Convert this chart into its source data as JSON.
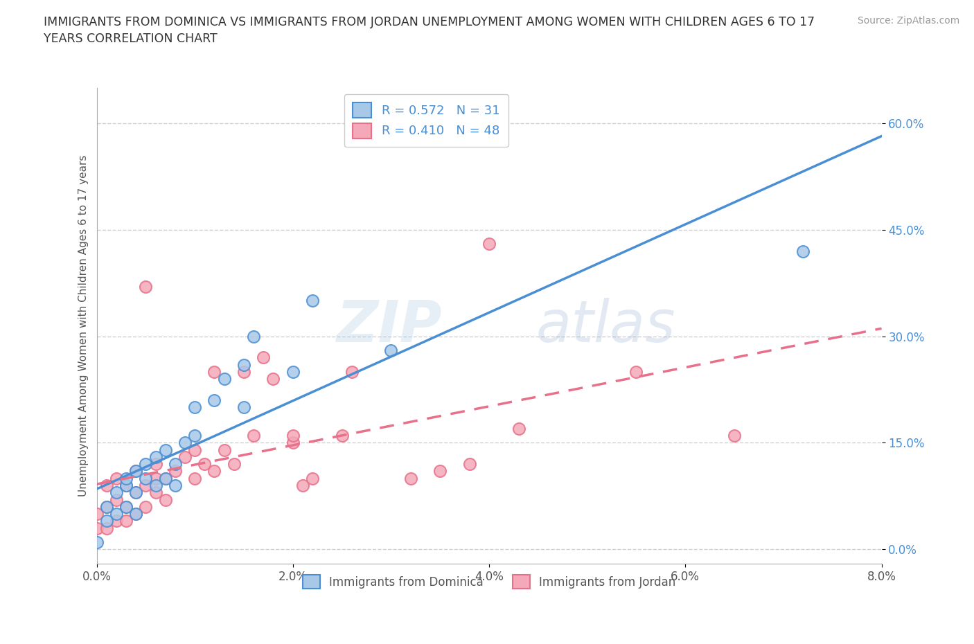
{
  "title": "IMMIGRANTS FROM DOMINICA VS IMMIGRANTS FROM JORDAN UNEMPLOYMENT AMONG WOMEN WITH CHILDREN AGES 6 TO 17\nYEARS CORRELATION CHART",
  "source": "Source: ZipAtlas.com",
  "ylabel": "Unemployment Among Women with Children Ages 6 to 17 years",
  "xlabel": "",
  "xlim": [
    0.0,
    0.08
  ],
  "ylim": [
    -0.02,
    0.65
  ],
  "x_ticks": [
    0.0,
    0.02,
    0.04,
    0.06,
    0.08
  ],
  "x_tick_labels": [
    "0.0%",
    "2.0%",
    "4.0%",
    "6.0%",
    "8.0%"
  ],
  "y_ticks": [
    0.0,
    0.15,
    0.3,
    0.45,
    0.6
  ],
  "y_tick_labels": [
    "0.0%",
    "15.0%",
    "30.0%",
    "45.0%",
    "60.0%"
  ],
  "dominica_color": "#a8c8e8",
  "jordan_color": "#f4a8b8",
  "dominica_line_color": "#4a8fd4",
  "jordan_line_color": "#e8708a",
  "R_dominica": 0.572,
  "N_dominica": 31,
  "R_jordan": 0.41,
  "N_jordan": 48,
  "watermark_text": "ZIP",
  "watermark_text2": "atlas",
  "background_color": "#ffffff",
  "grid_color": "#d0d0d0",
  "dominica_scatter_x": [
    0.0,
    0.001,
    0.001,
    0.002,
    0.002,
    0.003,
    0.003,
    0.003,
    0.004,
    0.004,
    0.004,
    0.005,
    0.005,
    0.006,
    0.006,
    0.007,
    0.007,
    0.008,
    0.008,
    0.009,
    0.01,
    0.01,
    0.012,
    0.013,
    0.015,
    0.015,
    0.016,
    0.02,
    0.022,
    0.03,
    0.072
  ],
  "dominica_scatter_y": [
    0.01,
    0.04,
    0.06,
    0.05,
    0.08,
    0.06,
    0.09,
    0.1,
    0.05,
    0.08,
    0.11,
    0.1,
    0.12,
    0.09,
    0.13,
    0.1,
    0.14,
    0.09,
    0.12,
    0.15,
    0.16,
    0.2,
    0.21,
    0.24,
    0.2,
    0.26,
    0.3,
    0.25,
    0.35,
    0.28,
    0.42
  ],
  "jordan_scatter_x": [
    0.0,
    0.0,
    0.001,
    0.001,
    0.001,
    0.002,
    0.002,
    0.002,
    0.003,
    0.003,
    0.003,
    0.004,
    0.004,
    0.004,
    0.005,
    0.005,
    0.005,
    0.006,
    0.006,
    0.006,
    0.007,
    0.007,
    0.008,
    0.009,
    0.01,
    0.01,
    0.011,
    0.012,
    0.012,
    0.013,
    0.014,
    0.015,
    0.016,
    0.017,
    0.018,
    0.02,
    0.02,
    0.021,
    0.022,
    0.025,
    0.026,
    0.032,
    0.035,
    0.038,
    0.04,
    0.043,
    0.055,
    0.065
  ],
  "jordan_scatter_y": [
    0.03,
    0.05,
    0.03,
    0.06,
    0.09,
    0.04,
    0.07,
    0.1,
    0.04,
    0.06,
    0.09,
    0.05,
    0.08,
    0.11,
    0.06,
    0.09,
    0.37,
    0.08,
    0.1,
    0.12,
    0.07,
    0.1,
    0.11,
    0.13,
    0.1,
    0.14,
    0.12,
    0.11,
    0.25,
    0.14,
    0.12,
    0.25,
    0.16,
    0.27,
    0.24,
    0.15,
    0.16,
    0.09,
    0.1,
    0.16,
    0.25,
    0.1,
    0.11,
    0.12,
    0.43,
    0.17,
    0.25,
    0.16
  ]
}
